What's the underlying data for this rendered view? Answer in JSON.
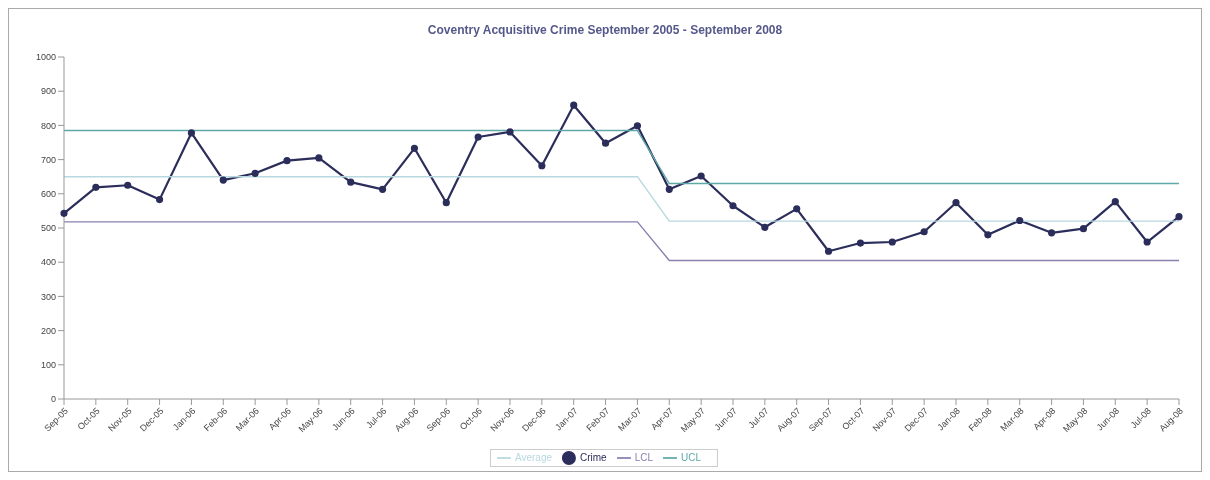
{
  "chart_data": {
    "type": "line",
    "title": "Coventry Acquisitive Crime September 2005 - September 2008",
    "categories": [
      "Sep-05",
      "Oct-05",
      "Nov-05",
      "Dec-05",
      "Jan-06",
      "Feb-06",
      "Mar-06",
      "Apr-06",
      "May-06",
      "Jun-06",
      "Jul-06",
      "Aug-06",
      "Sep-06",
      "Oct-06",
      "Nov-06",
      "Dec-06",
      "Jan-07",
      "Feb-07",
      "Mar-07",
      "Apr-07",
      "May-07",
      "Jun-07",
      "Jul-07",
      "Aug-07",
      "Sep-07",
      "Oct-07",
      "Nov-07",
      "Dec-07",
      "Jan-08",
      "Feb-08",
      "Mar-08",
      "Apr-08",
      "May-08",
      "Jun-08",
      "Jul-08",
      "Aug-08"
    ],
    "series": [
      {
        "name": "Crime",
        "color": "#2b2d5a",
        "marker": "circle",
        "values": [
          543,
          619,
          625,
          583,
          778,
          640,
          660,
          697,
          705,
          634,
          613,
          733,
          574,
          766,
          781,
          682,
          859,
          748,
          799,
          613,
          652,
          565,
          502,
          556,
          432,
          456,
          459,
          489,
          574,
          480,
          522,
          486,
          498,
          577,
          459,
          533
        ]
      },
      {
        "name": "Average",
        "color": "#b8d8e0",
        "marker": "none",
        "values": [
          650,
          650,
          650,
          650,
          650,
          650,
          650,
          650,
          650,
          650,
          650,
          650,
          650,
          650,
          650,
          650,
          650,
          650,
          650,
          520,
          520,
          520,
          520,
          520,
          520,
          520,
          520,
          520,
          520,
          520,
          520,
          520,
          520,
          520,
          520,
          520
        ]
      },
      {
        "name": "UCL",
        "color": "#5fa8a8",
        "marker": "none",
        "values": [
          785,
          785,
          785,
          785,
          785,
          785,
          785,
          785,
          785,
          785,
          785,
          785,
          785,
          785,
          785,
          785,
          785,
          785,
          785,
          630,
          630,
          630,
          630,
          630,
          630,
          630,
          630,
          630,
          630,
          630,
          630,
          630,
          630,
          630,
          630,
          630
        ]
      },
      {
        "name": "LCL",
        "color": "#8a80b0",
        "marker": "none",
        "values": [
          518,
          518,
          518,
          518,
          518,
          518,
          518,
          518,
          518,
          518,
          518,
          518,
          518,
          518,
          518,
          518,
          518,
          518,
          518,
          405,
          405,
          405,
          405,
          405,
          405,
          405,
          405,
          405,
          405,
          405,
          405,
          405,
          405,
          405,
          405,
          405
        ]
      }
    ],
    "ylim": [
      0,
      1000
    ],
    "yticks": [
      0,
      100,
      200,
      300,
      400,
      500,
      600,
      700,
      800,
      900,
      1000
    ],
    "grid": false,
    "legend": "bottom",
    "line_style": "solid"
  }
}
